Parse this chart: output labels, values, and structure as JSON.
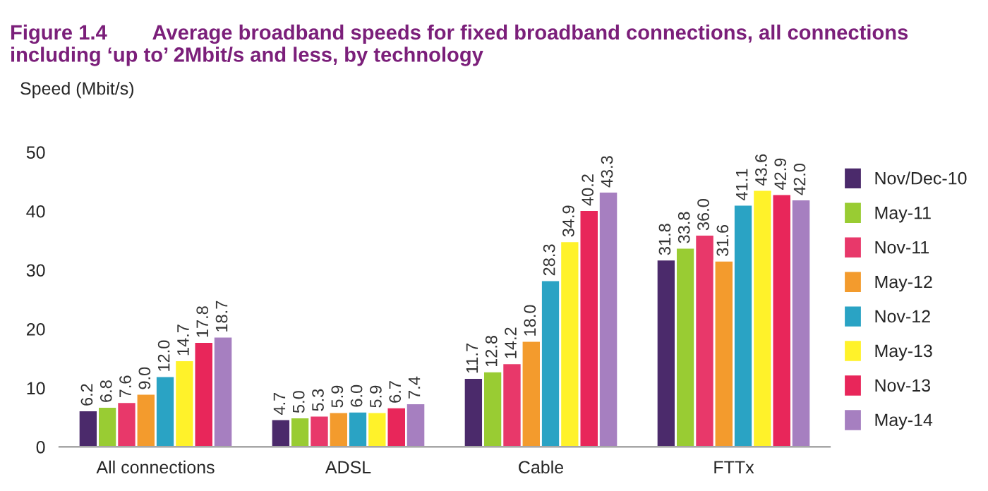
{
  "chart_data": {
    "type": "bar",
    "title": "Figure 1.4        Average broadband speeds for fixed broadband connections, all connections including ‘up to’ 2Mbit/s and less, by technology",
    "ylabel": "Speed (Mbit/s)",
    "categories": [
      "All connections",
      "ADSL",
      "Cable",
      "FTTx"
    ],
    "series": [
      {
        "name": "Nov/Dec-10",
        "color": "#4b2a6b",
        "values": [
          6.2,
          4.7,
          11.7,
          31.8
        ],
        "value_labels": [
          "6.2",
          "4.7",
          "11.7",
          "31.8"
        ]
      },
      {
        "name": "May-11",
        "color": "#99cc33",
        "values": [
          6.8,
          5.0,
          12.8,
          33.8
        ],
        "value_labels": [
          "6.8",
          "5.0",
          "12.8",
          "33.8"
        ]
      },
      {
        "name": "Nov-11",
        "color": "#e8386a",
        "values": [
          7.6,
          5.3,
          14.2,
          36.0
        ],
        "value_labels": [
          "7.6",
          "5.3",
          "14.2",
          "36.0"
        ]
      },
      {
        "name": "May-12",
        "color": "#f39b2d",
        "values": [
          9.0,
          5.9,
          18.0,
          31.6
        ],
        "value_labels": [
          "9.0",
          "5.9",
          "18.0",
          "31.6"
        ]
      },
      {
        "name": "Nov-12",
        "color": "#2aa3c4",
        "values": [
          12.0,
          6.0,
          28.3,
          41.1
        ],
        "value_labels": [
          "12.0",
          "6.0",
          "28.3",
          "41.1"
        ]
      },
      {
        "name": "May-13",
        "color": "#fff22a",
        "values": [
          14.7,
          5.9,
          34.9,
          43.6
        ],
        "value_labels": [
          "14.7",
          "5.9",
          "34.9",
          "43.6"
        ]
      },
      {
        "name": "Nov-13",
        "color": "#e8265a",
        "values": [
          17.8,
          6.7,
          40.2,
          42.9
        ],
        "value_labels": [
          "17.8",
          "6.7",
          "40.2",
          "42.9"
        ]
      },
      {
        "name": "May-14",
        "color": "#a67fc0",
        "values": [
          18.7,
          7.4,
          43.3,
          42.0
        ],
        "value_labels": [
          "18.7",
          "7.4",
          "43.3",
          "42.0"
        ]
      }
    ],
    "ylim": [
      0,
      50
    ],
    "yticks": [
      0,
      10,
      20,
      30,
      40,
      50
    ],
    "grid": false,
    "legend": "right"
  }
}
